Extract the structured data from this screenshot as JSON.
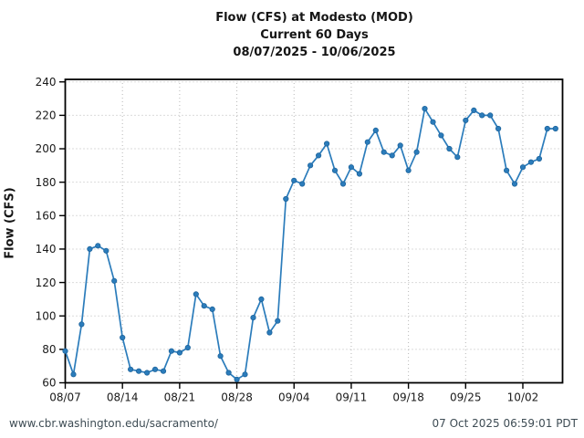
{
  "header": {
    "title_line1": "Flow (CFS) at Modesto (MOD)",
    "title_line2": "Current 60 Days",
    "title_line3": "08/07/2025 - 10/06/2025"
  },
  "footer": {
    "url": "www.cbr.washington.edu/sacramento/",
    "timestamp": "07 Oct 2025 06:59:01 PDT"
  },
  "chart_data": {
    "type": "line",
    "title": "Flow (CFS) at Modesto (MOD)",
    "subtitle": "Current 60 Days",
    "date_range": "08/07/2025 - 10/06/2025",
    "xlabel": "",
    "ylabel": "Flow (CFS)",
    "ylim": [
      60,
      240
    ],
    "yticks": [
      60,
      80,
      100,
      120,
      140,
      160,
      180,
      200,
      220,
      240
    ],
    "xtick_labels": [
      "08/07",
      "08/14",
      "08/21",
      "08/28",
      "09/04",
      "09/11",
      "09/18",
      "09/25",
      "10/02"
    ],
    "xtick_indices": [
      0,
      7,
      14,
      21,
      28,
      35,
      42,
      49,
      56
    ],
    "grid": "dotted",
    "legend": "none",
    "x_dates": [
      "08/07",
      "08/08",
      "08/09",
      "08/10",
      "08/11",
      "08/12",
      "08/13",
      "08/14",
      "08/15",
      "08/16",
      "08/17",
      "08/18",
      "08/19",
      "08/20",
      "08/21",
      "08/22",
      "08/23",
      "08/24",
      "08/25",
      "08/26",
      "08/27",
      "08/28",
      "08/29",
      "08/30",
      "08/31",
      "09/01",
      "09/02",
      "09/03",
      "09/04",
      "09/05",
      "09/06",
      "09/07",
      "09/08",
      "09/09",
      "09/10",
      "09/11",
      "09/12",
      "09/13",
      "09/14",
      "09/15",
      "09/16",
      "09/17",
      "09/18",
      "09/19",
      "09/20",
      "09/21",
      "09/22",
      "09/23",
      "09/24",
      "09/25",
      "09/26",
      "09/27",
      "09/28",
      "09/29",
      "09/30",
      "10/01",
      "10/02",
      "10/03",
      "10/04",
      "10/05",
      "10/06"
    ],
    "values": [
      79,
      65,
      95,
      140,
      142,
      139,
      121,
      87,
      68,
      67,
      66,
      68,
      67,
      79,
      78,
      81,
      113,
      106,
      104,
      76,
      66,
      62,
      65,
      99,
      110,
      90,
      97,
      170,
      181,
      179,
      190,
      196,
      203,
      187,
      179,
      189,
      185,
      204,
      211,
      198,
      196,
      202,
      187,
      198,
      224,
      216,
      208,
      200,
      195,
      217,
      223,
      220,
      220,
      212,
      187,
      179,
      189,
      192,
      194,
      212,
      212
    ],
    "line_color": "#2b7cbb",
    "marker_edge_color": "#1e649c",
    "grid_color": "#b8b8b8",
    "axis_color": "#000000",
    "tick_label_color": "#1a1a1a",
    "footer_color": "#3e4c54"
  }
}
